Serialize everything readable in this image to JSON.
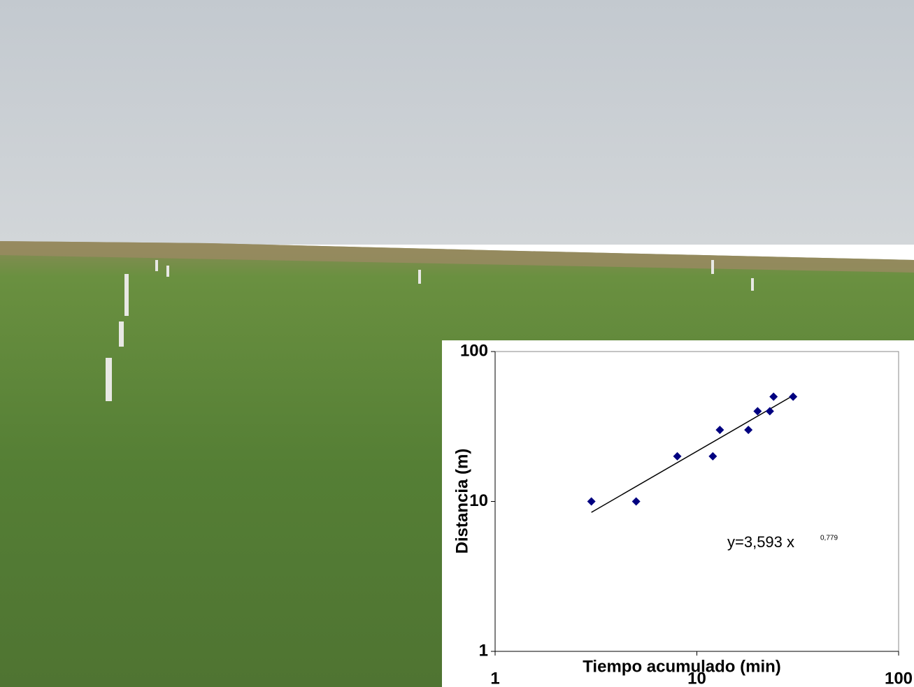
{
  "chart_data": {
    "type": "scatter",
    "x_label": "Tiempo acumulado (min)",
    "y_label": "Distancia (m)",
    "x": [
      3,
      5,
      8,
      12,
      13,
      18,
      20,
      23,
      24,
      30
    ],
    "series": [
      {
        "color": "#000080",
        "values": [
          10,
          10,
          20,
          20,
          30,
          30,
          40,
          40,
          50,
          50
        ]
      }
    ],
    "xlim": [
      1,
      100
    ],
    "ylim": [
      1,
      100
    ],
    "xticks": [
      1,
      10,
      100
    ],
    "yticks": [
      1,
      10,
      100
    ],
    "log_x": true,
    "log_y": true,
    "trendline": {
      "label": "y=3,593 x",
      "exponent_label": "0,779",
      "coefficient": 3.593,
      "exponent": 0.779,
      "x_start": 3,
      "x_end": 30
    }
  }
}
